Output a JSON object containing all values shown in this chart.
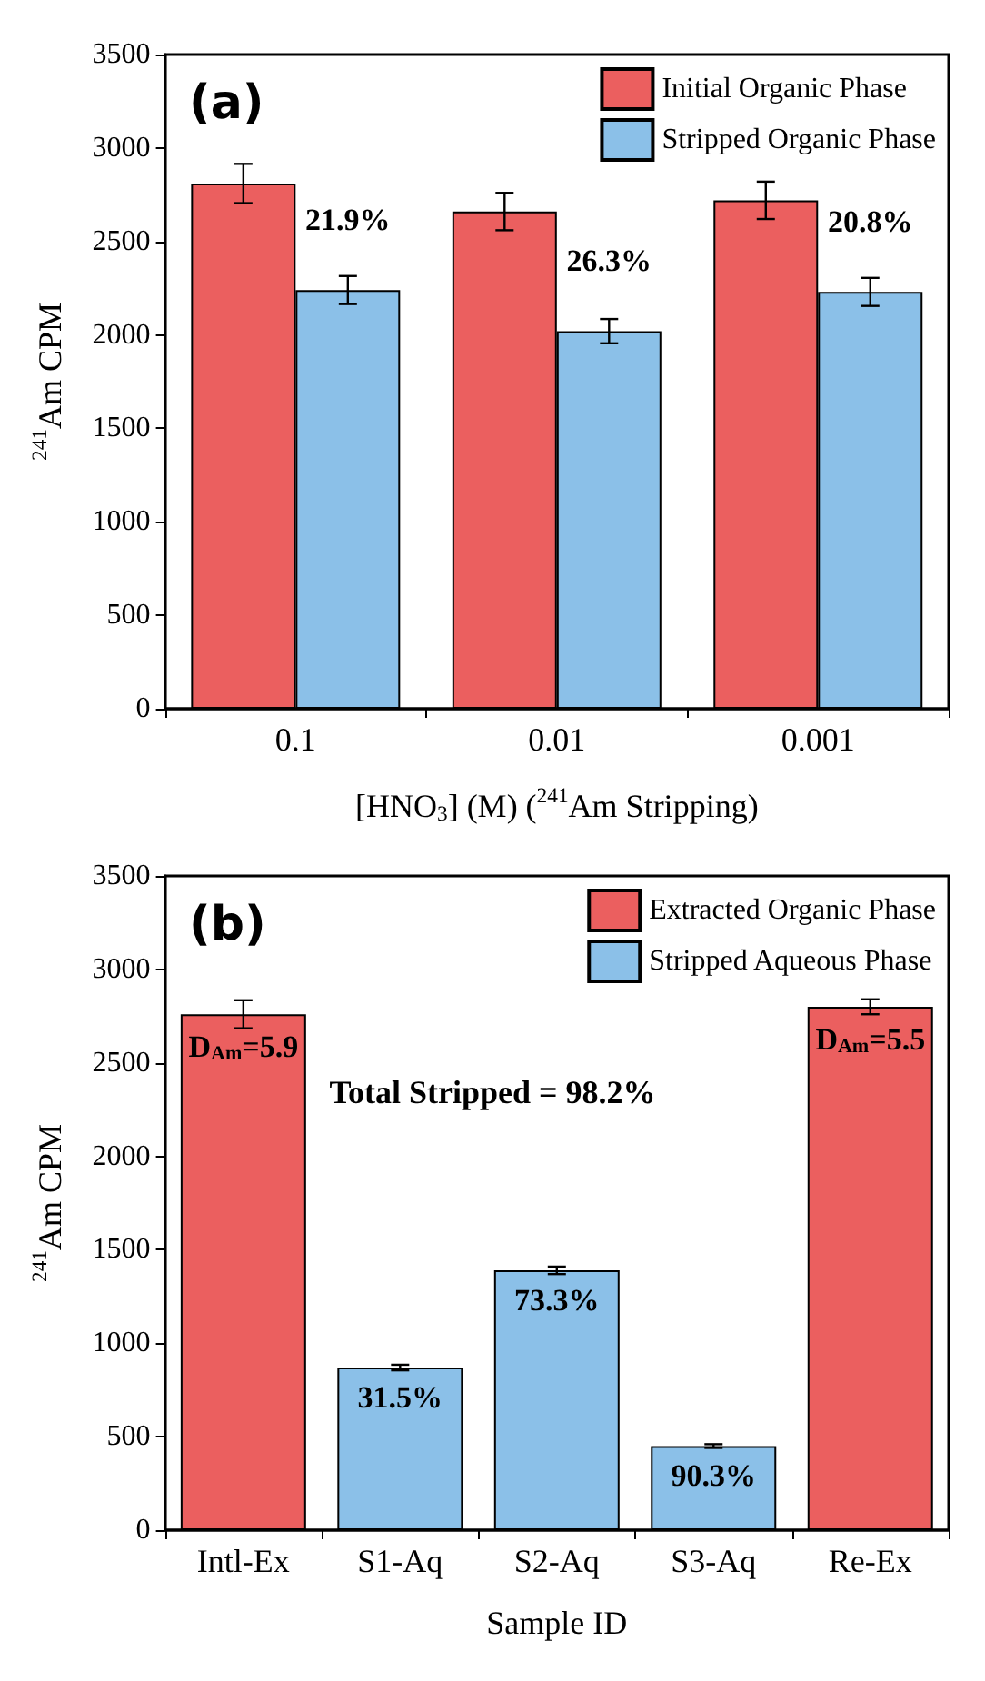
{
  "chart_data": [
    {
      "type": "bar",
      "categories": [
        "0.1",
        "0.01",
        "0.001"
      ],
      "xlabel": "[HNO$_{3}$] (M) ($^{241}$Am Stripping)",
      "ylabel": "$^{241}$Am CPM",
      "ylim": [
        0,
        3500
      ],
      "yticks": [
        0,
        500,
        1000,
        1500,
        2000,
        2500,
        3000,
        3500
      ],
      "grid": false,
      "legend": "top right",
      "annotations": [
        "(a)",
        {
          "text": "21.9%",
          "x": "0.1",
          "y": 2240
        },
        {
          "text": "26.3%",
          "x": "0.01",
          "y": 2020
        },
        {
          "text": "20.8%",
          "x": "0.001",
          "y": 2230
        }
      ],
      "series": [
        {
          "name": "Initial Organic Phase",
          "color": "#eb5f5f",
          "values": [
            2810,
            2660,
            2720
          ],
          "errors": [
            105,
            100,
            100
          ]
        },
        {
          "name": "Stripped Organic Phase",
          "color": "#8bc0e8",
          "values": [
            2240,
            2020,
            2230
          ],
          "errors": [
            75,
            65,
            75
          ]
        }
      ]
    },
    {
      "type": "bar",
      "categories": [
        "Intl-Ex",
        "S1-Aq",
        "S2-Aq",
        "S3-Aq",
        "Re-Ex"
      ],
      "xlabel": "Sample ID",
      "ylabel": "$^{241}$Am CPM",
      "ylim": [
        0,
        3500
      ],
      "yticks": [
        0,
        500,
        1000,
        1500,
        2000,
        2500,
        3000,
        3500
      ],
      "grid": false,
      "legend": "top right",
      "annotations": [
        "(b)",
        "Total Stripped = 98.2%",
        {
          "text": "D$_{Am}$=5.9",
          "x": "Intl-Ex",
          "y": 2760
        },
        {
          "text": "31.5%",
          "x": "S1-Aq",
          "y": 870
        },
        {
          "text": "73.3%",
          "x": "S2-Aq",
          "y": 1390
        },
        {
          "text": "90.3%",
          "x": "S3-Aq",
          "y": 450
        },
        {
          "text": "D$_{Am}$=5.5",
          "x": "Re-Ex",
          "y": 2800
        }
      ],
      "series": [
        {
          "name": "Extracted Organic Phase",
          "color": "#eb5f5f",
          "values": [
            2760,
            null,
            null,
            null,
            2800
          ],
          "errors": [
            75,
            null,
            null,
            null,
            40
          ]
        },
        {
          "name": "Stripped Aqueous Phase",
          "color": "#8bc0e8",
          "values": [
            null,
            870,
            1390,
            450,
            null
          ],
          "errors": [
            null,
            15,
            20,
            10,
            null
          ]
        }
      ]
    }
  ]
}
